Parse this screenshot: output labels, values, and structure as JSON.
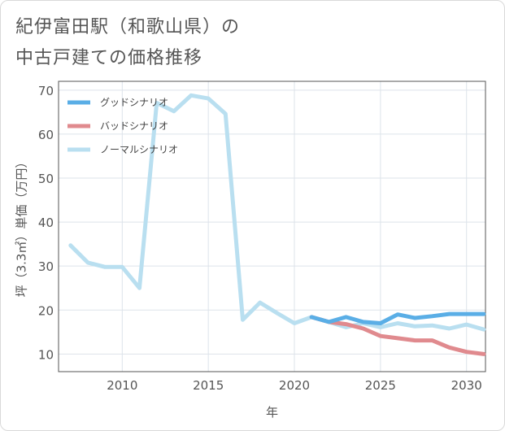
{
  "page": {
    "title_line1": "紀伊富田駅（和歌山県）の",
    "title_line2": "中古戸建ての価格推移"
  },
  "chart_data": {
    "type": "line",
    "title": "紀伊富田駅（和歌山県）の中古戸建ての価格推移",
    "xlabel": "年",
    "ylabel": "坪（3.3㎡）単価（万円）",
    "xlim": [
      2006.3,
      2031.1
    ],
    "ylim": [
      6,
      72
    ],
    "xticks": [
      2010,
      2015,
      2020,
      2025,
      2030
    ],
    "yticks": [
      10,
      20,
      30,
      40,
      50,
      60,
      70
    ],
    "grid": true,
    "legend_position": "top-left",
    "series": [
      {
        "name": "グッドシナリオ",
        "color": "#5aaee6",
        "points": [
          [
            2021,
            18.4
          ],
          [
            2022,
            17.3
          ],
          [
            2023,
            18.4
          ],
          [
            2024,
            17.3
          ],
          [
            2025,
            17.0
          ],
          [
            2026,
            19.0
          ],
          [
            2027,
            18.2
          ],
          [
            2028,
            18.6
          ],
          [
            2029,
            19.1
          ],
          [
            2030,
            19.1
          ],
          [
            2031,
            19.1
          ]
        ]
      },
      {
        "name": "バッドシナリオ",
        "color": "#e08a8e",
        "points": [
          [
            2021,
            18.4
          ],
          [
            2022,
            17.3
          ],
          [
            2023,
            16.8
          ],
          [
            2024,
            15.8
          ],
          [
            2025,
            14.1
          ],
          [
            2026,
            13.6
          ],
          [
            2027,
            13.1
          ],
          [
            2028,
            13.1
          ],
          [
            2029,
            11.5
          ],
          [
            2030,
            10.5
          ],
          [
            2031,
            10.0
          ]
        ]
      },
      {
        "name": "ノーマルシナリオ",
        "color": "#b9dff0",
        "points": [
          [
            2007,
            34.7
          ],
          [
            2008,
            30.8
          ],
          [
            2009,
            29.8
          ],
          [
            2010,
            29.8
          ],
          [
            2011,
            25.0
          ],
          [
            2012,
            67.1
          ],
          [
            2013,
            65.2
          ],
          [
            2014,
            68.8
          ],
          [
            2015,
            68.1
          ],
          [
            2016,
            64.6
          ],
          [
            2017,
            17.8
          ],
          [
            2018,
            21.7
          ],
          [
            2019,
            19.3
          ],
          [
            2020,
            17.0
          ],
          [
            2021,
            18.4
          ],
          [
            2022,
            17.3
          ],
          [
            2023,
            16.1
          ],
          [
            2024,
            17.0
          ],
          [
            2025,
            16.1
          ],
          [
            2026,
            17.0
          ],
          [
            2027,
            16.3
          ],
          [
            2028,
            16.5
          ],
          [
            2029,
            15.8
          ],
          [
            2030,
            16.7
          ],
          [
            2031,
            15.6
          ]
        ]
      }
    ]
  }
}
